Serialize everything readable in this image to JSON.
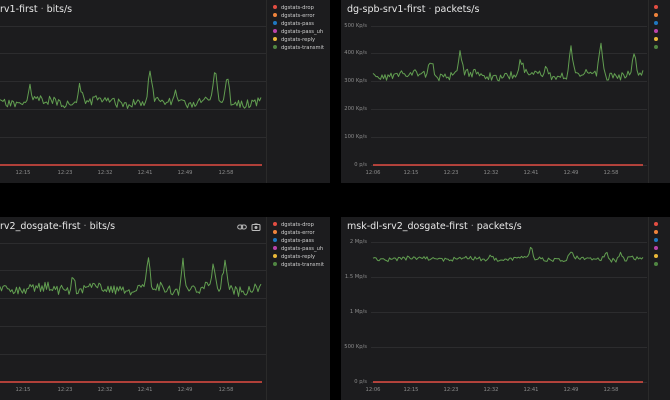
{
  "panels": [
    {
      "title_name": "rv1-first",
      "title_sep": "·",
      "title_unit": "bits/s",
      "x_ticks": [
        "12:15",
        "12:23",
        "12:32",
        "12:41",
        "12:49",
        "12:58"
      ],
      "y_ticks": [],
      "legend": [
        "dgstats-drop",
        "dgstats-error",
        "dgstats-pass",
        "dgstats-pass_uh",
        "dgstats-reply",
        "dgstats-transmit"
      ]
    },
    {
      "title_name": "dg-spb-srv1-first",
      "title_sep": "·",
      "title_unit": "packets/s",
      "x_ticks": [
        "12:06",
        "12:15",
        "12:23",
        "12:32",
        "12:41",
        "12:49",
        "12:58"
      ],
      "y_ticks": [
        "500 Kp/s",
        "400 Kp/s",
        "300 Kp/s",
        "200 Kp/s",
        "100 Kp/s",
        "0 p/s"
      ],
      "legend": [
        "",
        "",
        "",
        "",
        "",
        ""
      ]
    },
    {
      "title_name": "rv2_dosgate-first",
      "title_sep": "·",
      "title_unit": "bits/s",
      "x_ticks": [
        "12:15",
        "12:23",
        "12:32",
        "12:41",
        "12:49",
        "12:58"
      ],
      "y_ticks": [],
      "legend": [
        "dgstats-drop",
        "dgstats-error",
        "dgstats-pass",
        "dgstats-pass_uh",
        "dgstats-reply",
        "dgstats-transmit"
      ]
    },
    {
      "title_name": "msk-dl-srv2_dosgate-first",
      "title_sep": "·",
      "title_unit": "packets/s",
      "x_ticks": [
        "12:06",
        "12:15",
        "12:23",
        "12:32",
        "12:41",
        "12:49",
        "12:58"
      ],
      "y_ticks": [
        "2 Mp/s",
        "1.5 Mp/s",
        "1 Mp/s",
        "500 Kp/s",
        "0 p/s"
      ],
      "legend": [
        "",
        "",
        "",
        "",
        "",
        ""
      ]
    }
  ],
  "legend_colors": [
    "#e24d42",
    "#ef843c",
    "#1f78c1",
    "#ba43a9",
    "#eab839",
    "#508642"
  ],
  "colors": {
    "series": "#629e51",
    "baseline": "#e24d42",
    "background": "#1c1c1e"
  },
  "icons": {
    "link": "link-icon",
    "screenshot": "camera-icon"
  }
}
